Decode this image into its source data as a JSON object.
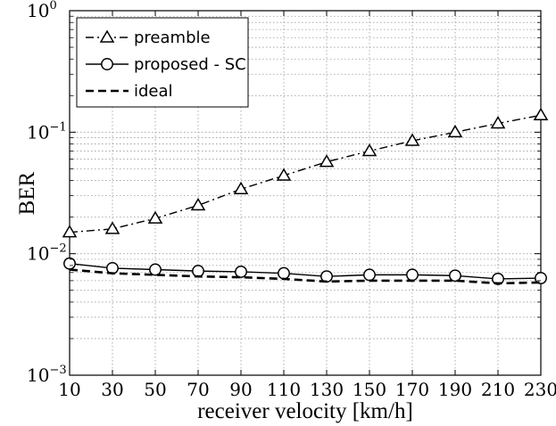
{
  "chart_data": {
    "type": "line",
    "xlabel": "receiver velocity [km/h]",
    "ylabel": "BER",
    "x": [
      10,
      30,
      50,
      70,
      90,
      110,
      130,
      150,
      170,
      190,
      210,
      230
    ],
    "xlim": [
      10,
      230
    ],
    "ylim": [
      0.001,
      1
    ],
    "yscale": "log",
    "grid": true,
    "legend_position": "top-left",
    "x_ticks": [
      "10",
      "30",
      "50",
      "70",
      "90",
      "110",
      "130",
      "150",
      "170",
      "190",
      "210",
      "230"
    ],
    "y_ticks": [
      {
        "base": "10",
        "exp": "−3",
        "value": 0.001
      },
      {
        "base": "10",
        "exp": "−2",
        "value": 0.01
      },
      {
        "base": "10",
        "exp": "−1",
        "value": 0.1
      },
      {
        "base": "10",
        "exp": "0",
        "value": 1
      }
    ],
    "series": [
      {
        "name": "preamble",
        "style": "dashdot",
        "marker": "triangle",
        "values": [
          0.015,
          0.016,
          0.0195,
          0.025,
          0.034,
          0.044,
          0.057,
          0.07,
          0.085,
          0.1,
          0.118,
          0.138
        ]
      },
      {
        "name": "proposed - SC",
        "style": "solid",
        "marker": "circle",
        "values": [
          0.0083,
          0.0076,
          0.0074,
          0.0072,
          0.0071,
          0.0069,
          0.0065,
          0.0067,
          0.0067,
          0.0066,
          0.0062,
          0.0063
        ]
      },
      {
        "name": "ideal",
        "style": "dashed",
        "marker": "none",
        "values": [
          0.0074,
          0.0069,
          0.0067,
          0.0065,
          0.0064,
          0.0062,
          0.0059,
          0.006,
          0.006,
          0.006,
          0.0057,
          0.0058
        ]
      }
    ]
  }
}
